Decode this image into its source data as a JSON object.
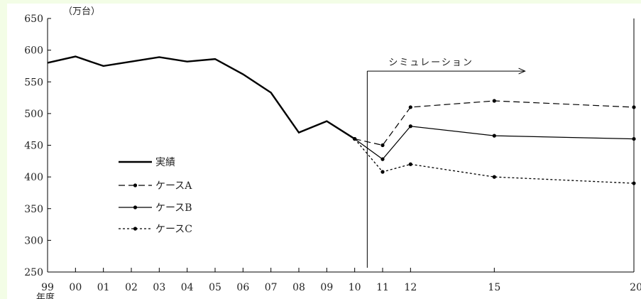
{
  "chart_data": {
    "type": "line",
    "unit_label": "（万台）",
    "xlabel": "年度",
    "ylim": [
      250,
      650
    ],
    "yticks": [
      250,
      300,
      350,
      400,
      450,
      500,
      550,
      600,
      650
    ],
    "x_tick_labels": [
      "99",
      "00",
      "01",
      "02",
      "03",
      "04",
      "05",
      "06",
      "07",
      "08",
      "09",
      "10",
      "11",
      "12",
      "15",
      "20"
    ],
    "x_tick_positions": [
      99,
      100,
      101,
      102,
      103,
      104,
      105,
      106,
      107,
      108,
      109,
      110,
      111,
      112,
      115,
      120
    ],
    "xlim": [
      99,
      120
    ],
    "simulation_label": "シミュレーション",
    "simulation_start_x": 110.45,
    "simulation_arrow_end_x": 116.1,
    "series": [
      {
        "name": "実績",
        "style": "solid-thick",
        "markers": false,
        "x": [
          99,
          100,
          101,
          102,
          103,
          104,
          105,
          106,
          107,
          108,
          109,
          110
        ],
        "values": [
          580,
          590,
          575,
          582,
          589,
          582,
          586,
          562,
          533,
          470,
          488,
          460
        ]
      },
      {
        "name": "ケースA",
        "style": "dashed",
        "markers": true,
        "x": [
          110,
          111,
          112,
          115,
          120
        ],
        "values": [
          460,
          450,
          510,
          520,
          510
        ]
      },
      {
        "name": "ケースB",
        "style": "solid-thin",
        "markers": true,
        "x": [
          110,
          111,
          112,
          115,
          120
        ],
        "values": [
          460,
          428,
          480,
          465,
          460
        ]
      },
      {
        "name": "ケースC",
        "style": "dotted",
        "markers": true,
        "x": [
          110,
          111,
          112,
          115,
          120
        ],
        "values": [
          460,
          408,
          420,
          400,
          390
        ]
      }
    ]
  }
}
